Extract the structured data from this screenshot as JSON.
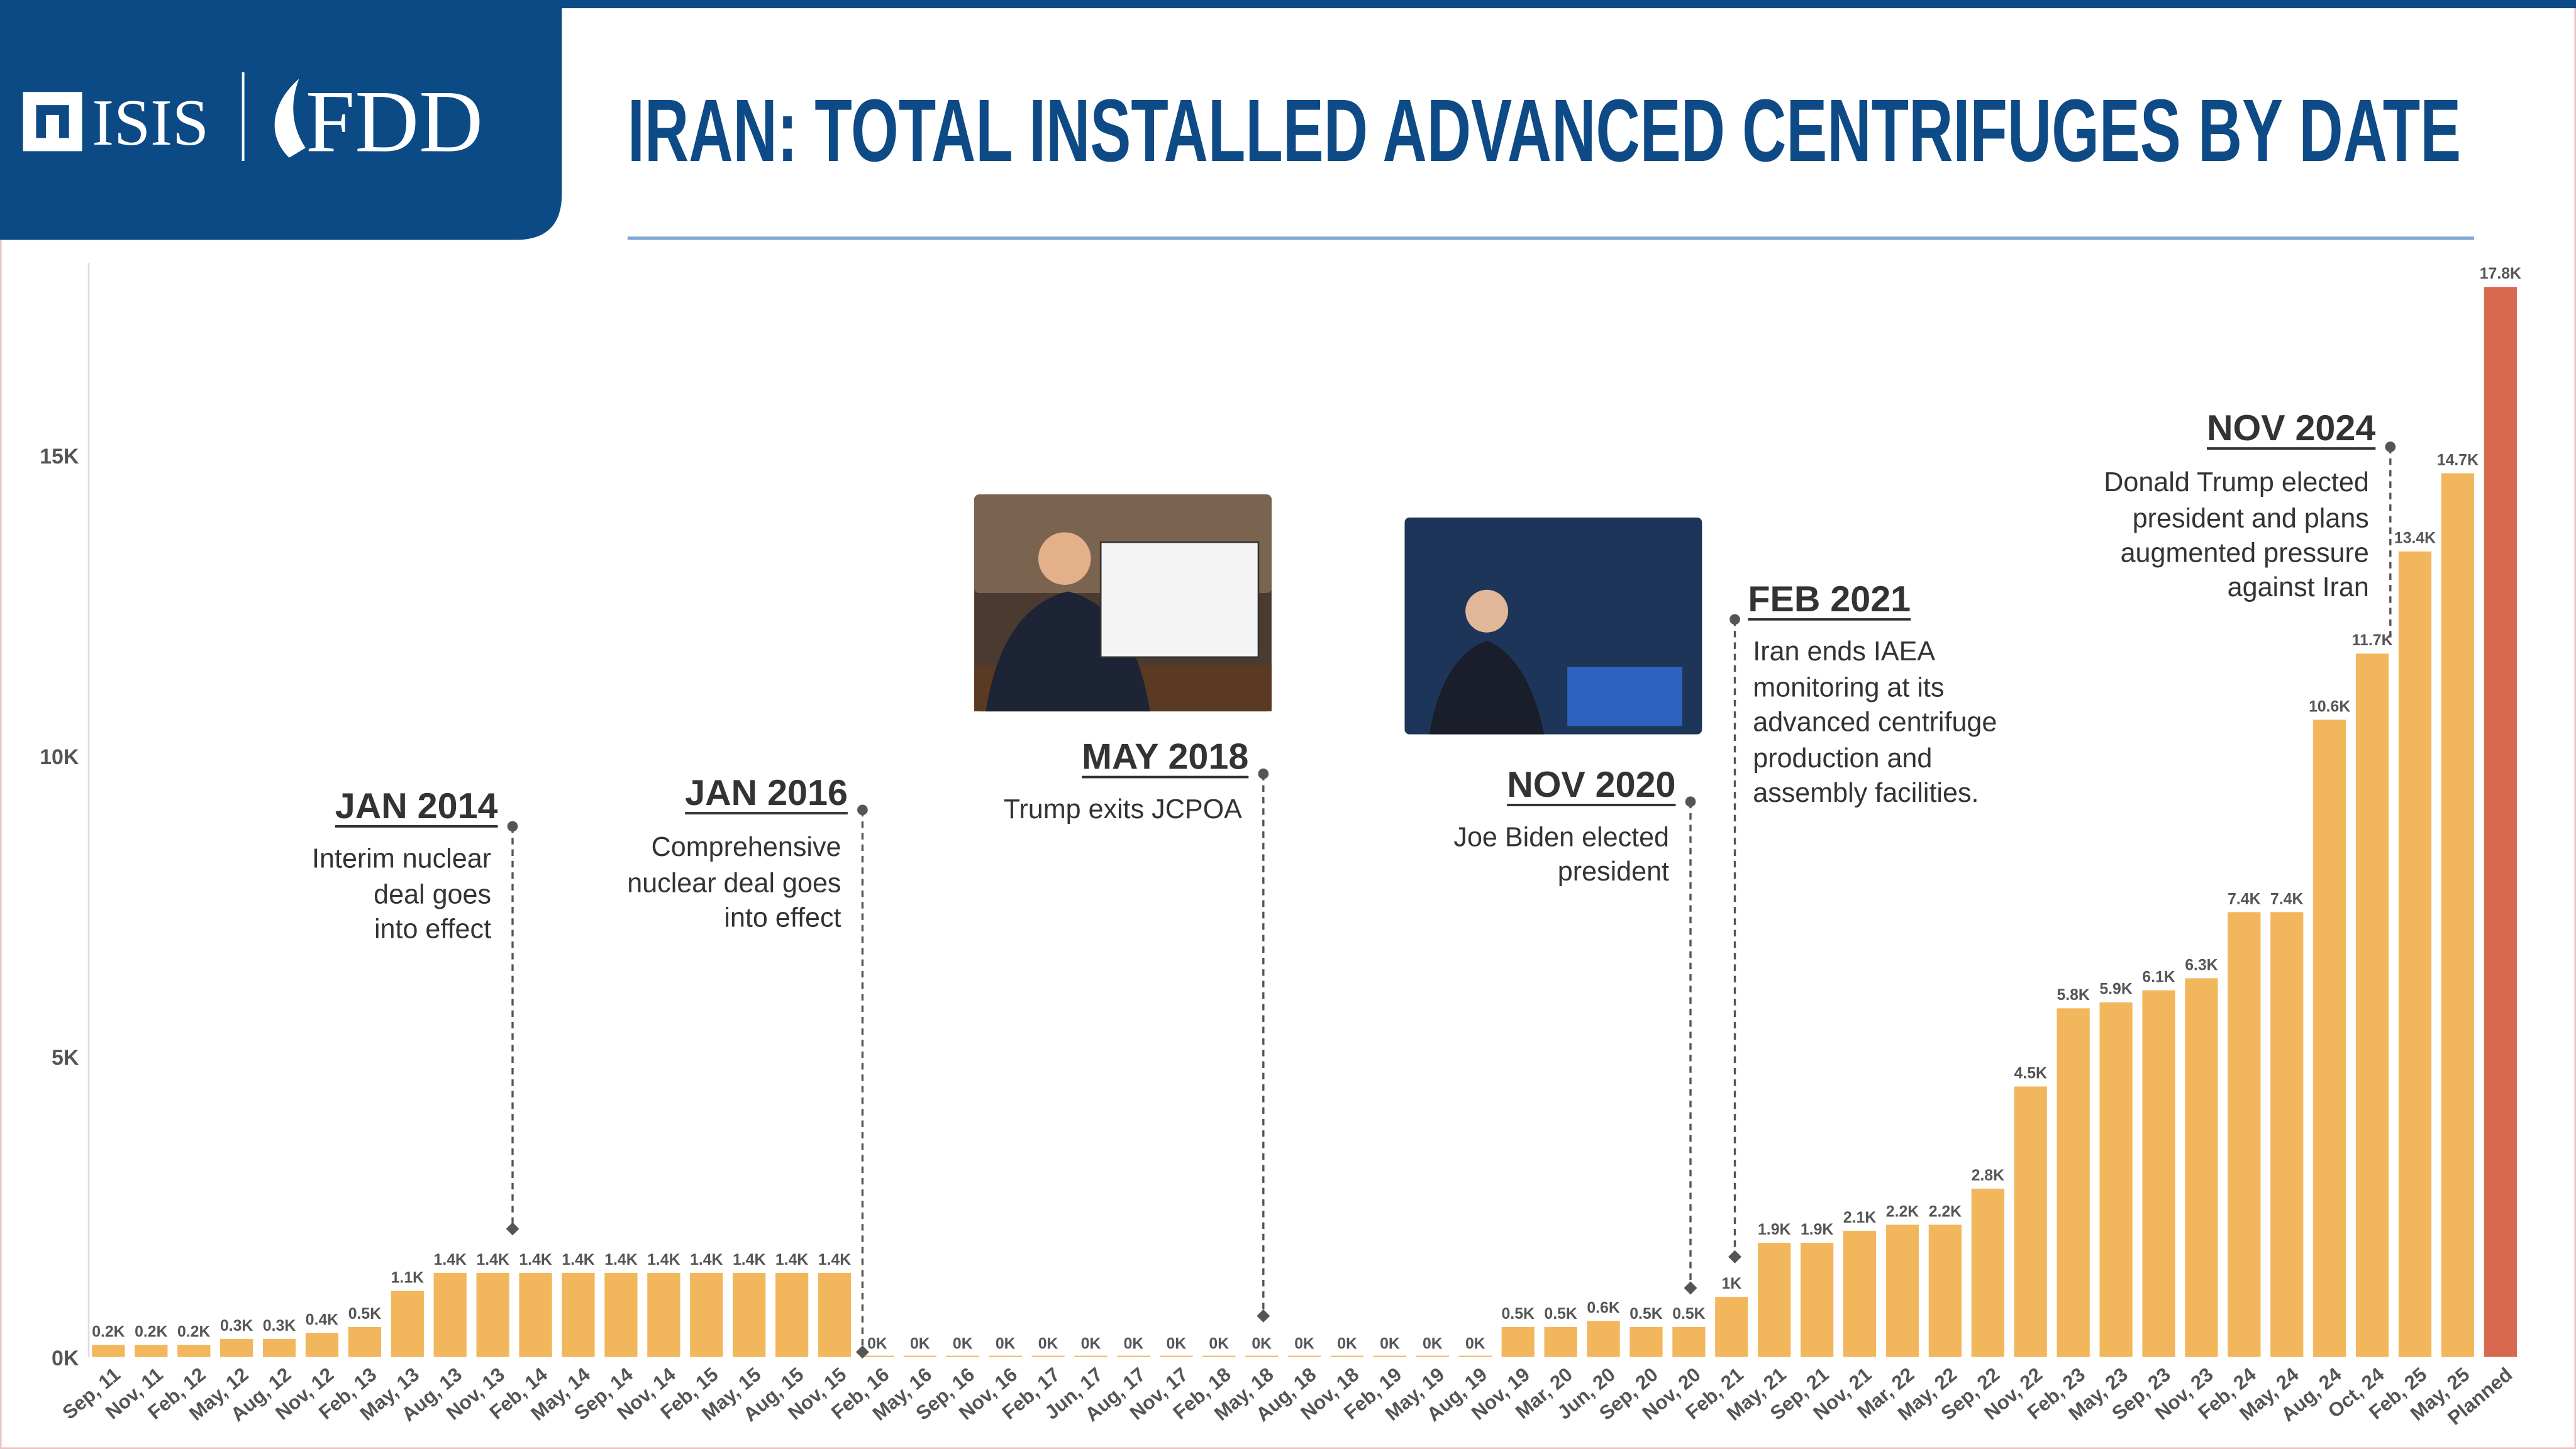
{
  "header": {
    "logo": [
      "ISIS",
      "FDD"
    ]
  },
  "chart_data": {
    "type": "bar",
    "title": "IRAN: TOTAL INSTALLED ADVANCED CENTRIFUGES BY DATE",
    "categories": [
      "Sep, 11",
      "Nov, 11",
      "Feb, 12",
      "May, 12",
      "Aug, 12",
      "Nov, 12",
      "Feb, 13",
      "May, 13",
      "Aug, 13",
      "Nov, 13",
      "Feb, 14",
      "May, 14",
      "Sep, 14",
      "Nov, 14",
      "Feb, 15",
      "May, 15",
      "Aug, 15",
      "Nov, 15",
      "Feb, 16",
      "May, 16",
      "Sep, 16",
      "Nov, 16",
      "Feb, 17",
      "Jun, 17",
      "Aug, 17",
      "Nov, 17",
      "Feb, 18",
      "May, 18",
      "Aug, 18",
      "Nov, 18",
      "Feb, 19",
      "May, 19",
      "Aug, 19",
      "Nov, 19",
      "Mar, 20",
      "Jun, 20",
      "Sep, 20",
      "Nov, 20",
      "Feb, 21",
      "May, 21",
      "Sep, 21",
      "Nov, 21",
      "Mar, 22",
      "May, 22",
      "Sep, 22",
      "Nov, 22",
      "Feb, 23",
      "May, 23",
      "Sep, 23",
      "Nov, 23",
      "Feb, 24",
      "May, 24",
      "Aug, 24",
      "Oct, 24",
      "Feb, 25",
      "May, 25",
      "Planned"
    ],
    "values": [
      200,
      200,
      200,
      300,
      300,
      400,
      500,
      1100,
      1400,
      1400,
      1400,
      1400,
      1400,
      1400,
      1400,
      1400,
      1400,
      1400,
      0,
      0,
      0,
      0,
      0,
      0,
      0,
      0,
      0,
      0,
      0,
      0,
      0,
      0,
      0,
      500,
      500,
      600,
      500,
      500,
      1000,
      1900,
      1900,
      2100,
      2200,
      2200,
      2800,
      4500,
      5800,
      5900,
      6100,
      6300,
      7400,
      7400,
      10600,
      11700,
      13400,
      14700,
      17800
    ],
    "value_labels": [
      "0.2K",
      "0.2K",
      "0.2K",
      "0.3K",
      "0.3K",
      "0.4K",
      "0.5K",
      "1.1K",
      "1.4K",
      "1.4K",
      "1.4K",
      "1.4K",
      "1.4K",
      "1.4K",
      "1.4K",
      "1.4K",
      "1.4K",
      "1.4K",
      "0K",
      "0K",
      "0K",
      "0K",
      "0K",
      "0K",
      "0K",
      "0K",
      "0K",
      "0K",
      "0K",
      "0K",
      "0K",
      "0K",
      "0K",
      "0.5K",
      "0.5K",
      "0.6K",
      "0.5K",
      "0.5K",
      "1K",
      "1.9K",
      "1.9K",
      "2.1K",
      "2.2K",
      "2.2K",
      "2.8K",
      "4.5K",
      "5.8K",
      "5.9K",
      "6.1K",
      "6.3K",
      "7.4K",
      "7.4K",
      "10.6K",
      "11.7K",
      "13.4K",
      "14.7K",
      "17.8K"
    ],
    "colors": [
      "#f2b75c",
      "#f2b75c",
      "#f2b75c",
      "#f2b75c",
      "#f2b75c",
      "#f2b75c",
      "#f2b75c",
      "#f2b75c",
      "#f2b75c",
      "#f2b75c",
      "#f2b75c",
      "#f2b75c",
      "#f2b75c",
      "#f2b75c",
      "#f2b75c",
      "#f2b75c",
      "#f2b75c",
      "#f2b75c",
      "#f2b75c",
      "#f2b75c",
      "#f2b75c",
      "#f2b75c",
      "#f2b75c",
      "#f2b75c",
      "#f2b75c",
      "#f2b75c",
      "#f2b75c",
      "#f2b75c",
      "#f2b75c",
      "#f2b75c",
      "#f2b75c",
      "#f2b75c",
      "#f2b75c",
      "#f2b75c",
      "#f2b75c",
      "#f2b75c",
      "#f2b75c",
      "#f2b75c",
      "#f2b75c",
      "#f2b75c",
      "#f2b75c",
      "#f2b75c",
      "#f2b75c",
      "#f2b75c",
      "#f2b75c",
      "#f2b75c",
      "#f2b75c",
      "#f2b75c",
      "#f2b75c",
      "#f2b75c",
      "#f2b75c",
      "#f2b75c",
      "#f2b75c",
      "#f2b75c",
      "#f2b75c",
      "#f2b75c",
      "#d9694e"
    ],
    "ylim": [
      0,
      18200
    ],
    "yticks": [
      {
        "value": 0,
        "label": "0K"
      },
      {
        "value": 5000,
        "label": "5K"
      },
      {
        "value": 10000,
        "label": "10K"
      },
      {
        "value": 15000,
        "label": "15K"
      }
    ],
    "grid": false,
    "annotations": [
      {
        "title": "JAN 2014",
        "text": [
          "Interim nuclear",
          "deal goes",
          "into effect"
        ]
      },
      {
        "title": "JAN 2016",
        "text": [
          "Comprehensive",
          "nuclear deal goes",
          "into effect"
        ]
      },
      {
        "title": "MAY 2018",
        "text": [
          "Trump exits JCPOA"
        ]
      },
      {
        "title": "NOV 2020",
        "text": [
          "Joe Biden elected",
          "president"
        ]
      },
      {
        "title": "FEB 2021",
        "text": [
          "Iran ends IAEA",
          "monitoring at its",
          "advanced centrifuge",
          "production and",
          "assembly facilities."
        ]
      },
      {
        "title": "NOV 2024",
        "text": [
          "Donald Trump elected",
          "president and plans",
          "augmented pressure",
          "against Iran"
        ]
      }
    ]
  }
}
